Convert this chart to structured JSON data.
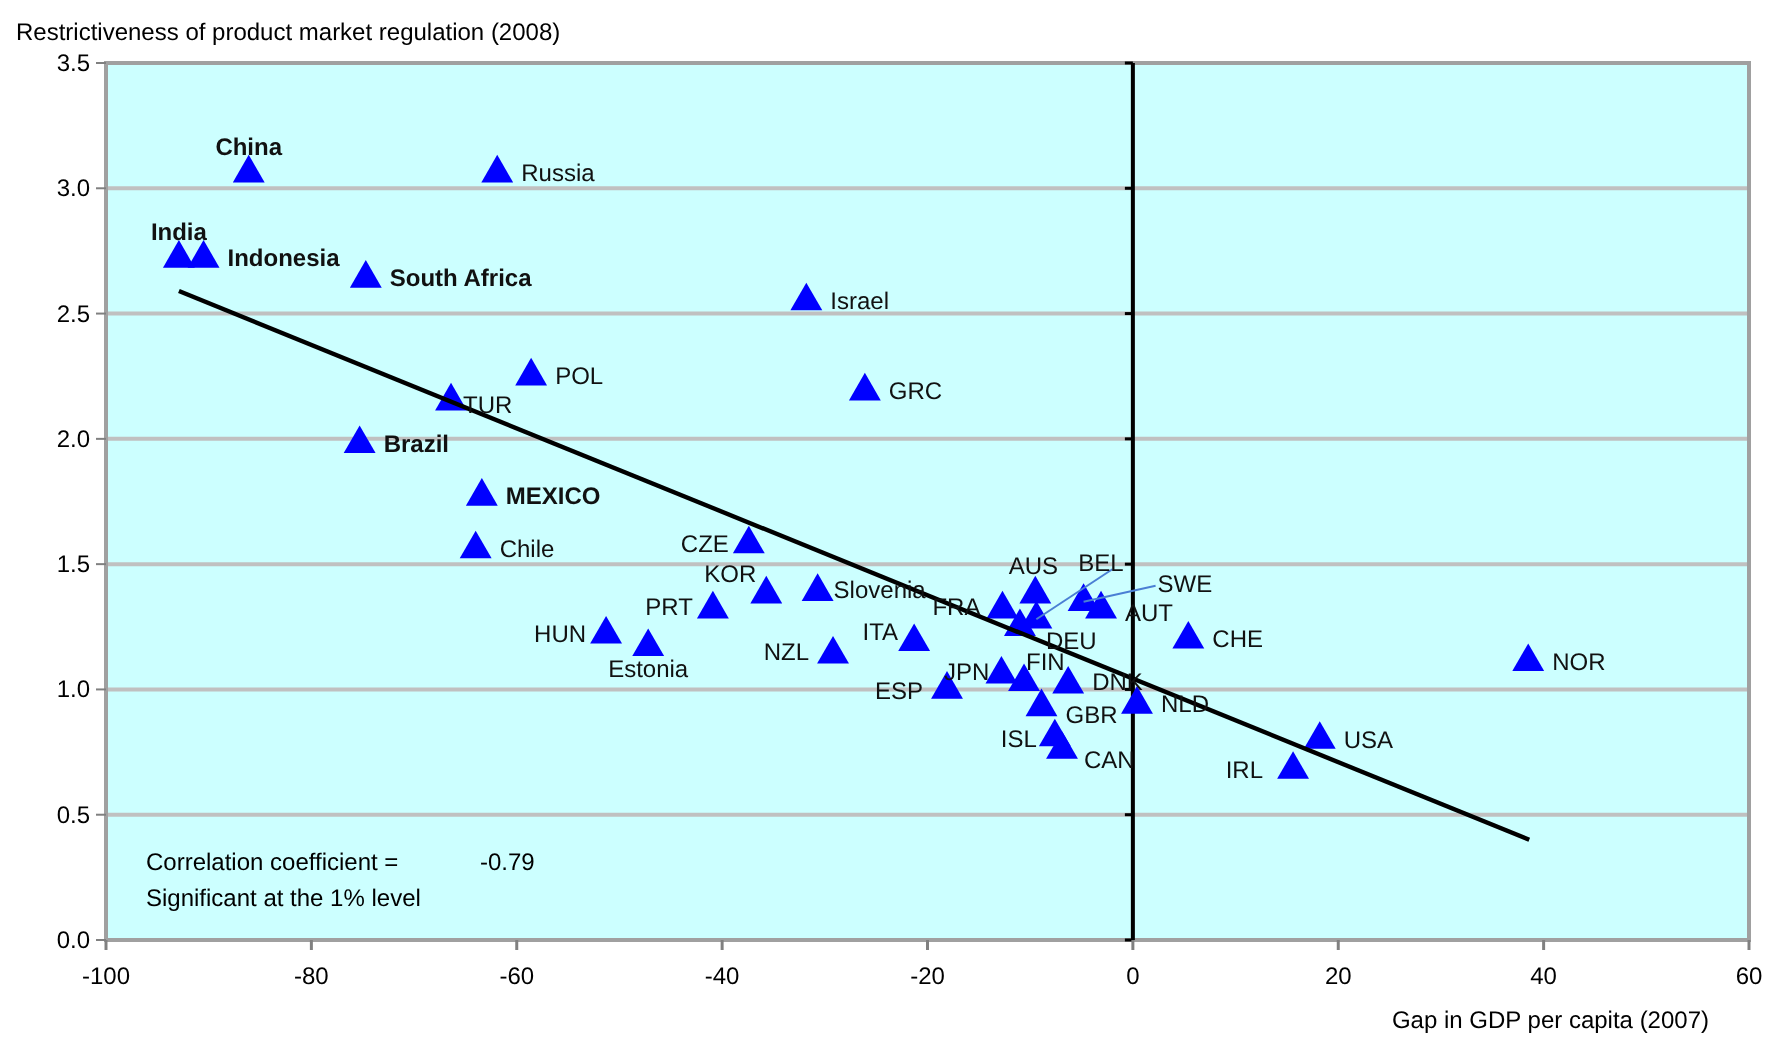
{
  "chart_data": {
    "type": "scatter",
    "ylabel": "Restrictiveness of product market regulation (2008)",
    "xlabel": "Gap in GDP per capita (2007)",
    "xlim": [
      -100,
      60
    ],
    "xticks": [
      -100,
      -80,
      -60,
      -40,
      -20,
      0,
      20,
      40,
      60
    ],
    "ylim": [
      0,
      3.5
    ],
    "yticks": [
      {
        "value": 0,
        "label": "0.0"
      },
      0.5,
      {
        "value": 1,
        "label": "1.0"
      },
      1.5,
      {
        "value": 2,
        "label": "2.0"
      },
      2.5,
      {
        "value": 3,
        "label": "3.0"
      },
      3.5
    ],
    "grid": "y",
    "marker": "triangle",
    "series": [
      {
        "color": "#0000ff",
        "x": [
          -61.9,
          -31.8,
          -58.6,
          -66.4,
          -26.1,
          -64.0,
          -51.3,
          -47.2,
          -37.4,
          -35.7,
          -40.9,
          -30.7,
          -29.2,
          -21.3,
          -18.1,
          -12.8,
          -10.6,
          -6.3,
          -8.9,
          -7.6,
          -6.9,
          0.4,
          -12.7,
          -9.5,
          -11.0,
          -9.4,
          -4.8,
          -3.1,
          5.4,
          38.5,
          18.2,
          15.6
        ],
        "values": [
          3.06,
          2.55,
          2.25,
          2.15,
          2.19,
          1.56,
          1.22,
          1.17,
          1.58,
          1.38,
          1.32,
          1.39,
          1.14,
          1.19,
          1.0,
          1.06,
          1.03,
          1.02,
          0.93,
          0.81,
          0.76,
          0.94,
          1.32,
          1.38,
          1.25,
          1.28,
          1.35,
          1.32,
          1.2,
          1.11,
          0.8,
          0.68
        ]
      },
      {
        "color": "#0000ff",
        "x": [
          -86.1,
          -92.9,
          -90.5,
          -74.7,
          -75.3,
          -63.4
        ],
        "values": [
          3.06,
          2.72,
          2.72,
          2.64,
          1.98,
          1.77
        ]
      },
      {
        "type": "line",
        "color": "#000000",
        "marker": "none",
        "x": [
          -92.9,
          38.6
        ],
        "values": [
          2.59,
          0.4
        ]
      }
    ],
    "ref_lines": [
      {
        "axis": "x",
        "value": 0,
        "color": "#000000"
      }
    ],
    "annotations": [
      {
        "text": "Russia",
        "x": -61.9,
        "y": 3.06
      },
      {
        "text": "Israel",
        "x": -31.8,
        "y": 2.55
      },
      {
        "text": "POL",
        "x": -58.6,
        "y": 2.25
      },
      {
        "text": "TUR",
        "x": -66.4,
        "y": 2.15
      },
      {
        "text": "GRC",
        "x": -26.1,
        "y": 2.19
      },
      {
        "text": "Chile",
        "x": -64.0,
        "y": 1.56
      },
      {
        "text": "HUN",
        "x": -51.3,
        "y": 1.22
      },
      {
        "text": "Estonia",
        "x": -47.2,
        "y": 1.17
      },
      {
        "text": "CZE",
        "x": -37.4,
        "y": 1.58
      },
      {
        "text": "KOR",
        "x": -35.7,
        "y": 1.38
      },
      {
        "text": "PRT",
        "x": -40.9,
        "y": 1.32
      },
      {
        "text": "Slovenia",
        "x": -30.7,
        "y": 1.39
      },
      {
        "text": "NZL",
        "x": -29.2,
        "y": 1.14
      },
      {
        "text": "ITA",
        "x": -21.3,
        "y": 1.19
      },
      {
        "text": "ESP",
        "x": -18.1,
        "y": 1.0
      },
      {
        "text": "JPN",
        "x": -12.8,
        "y": 1.06
      },
      {
        "text": "FIN",
        "x": -10.6,
        "y": 1.03
      },
      {
        "text": "DNK",
        "x": -6.3,
        "y": 1.02
      },
      {
        "text": "GBR",
        "x": -8.9,
        "y": 0.93
      },
      {
        "text": "ISL",
        "x": -7.6,
        "y": 0.81
      },
      {
        "text": "CAN",
        "x": -6.9,
        "y": 0.76
      },
      {
        "text": "NLD",
        "x": 0.4,
        "y": 0.94
      },
      {
        "text": "FRA",
        "x": -12.7,
        "y": 1.32
      },
      {
        "text": "AUS",
        "x": -9.5,
        "y": 1.38
      },
      {
        "text": "DEU",
        "x": -11.0,
        "y": 1.25
      },
      {
        "text": "BEL",
        "x": -9.4,
        "y": 1.28
      },
      {
        "text": "SWE",
        "x": -4.8,
        "y": 1.35
      },
      {
        "text": "AUT",
        "x": -3.1,
        "y": 1.32
      },
      {
        "text": "CHE",
        "x": 5.4,
        "y": 1.2
      },
      {
        "text": "NOR",
        "x": 38.5,
        "y": 1.11
      },
      {
        "text": "USA",
        "x": 18.2,
        "y": 0.8
      },
      {
        "text": "IRL",
        "x": 15.6,
        "y": 0.68
      },
      {
        "text": "China",
        "x": -86.1,
        "y": 3.06
      },
      {
        "text": "India",
        "x": -92.9,
        "y": 2.72
      },
      {
        "text": "Indonesia",
        "x": -90.5,
        "y": 2.72
      },
      {
        "text": "South Africa",
        "x": -74.7,
        "y": 2.64
      },
      {
        "text": "Brazil",
        "x": -75.3,
        "y": 1.98
      },
      {
        "text": "MEXICO",
        "x": -63.4,
        "y": 1.77
      },
      "Correlation coefficient =",
      "-0.79",
      "Significant at the 1% level"
    ]
  }
}
